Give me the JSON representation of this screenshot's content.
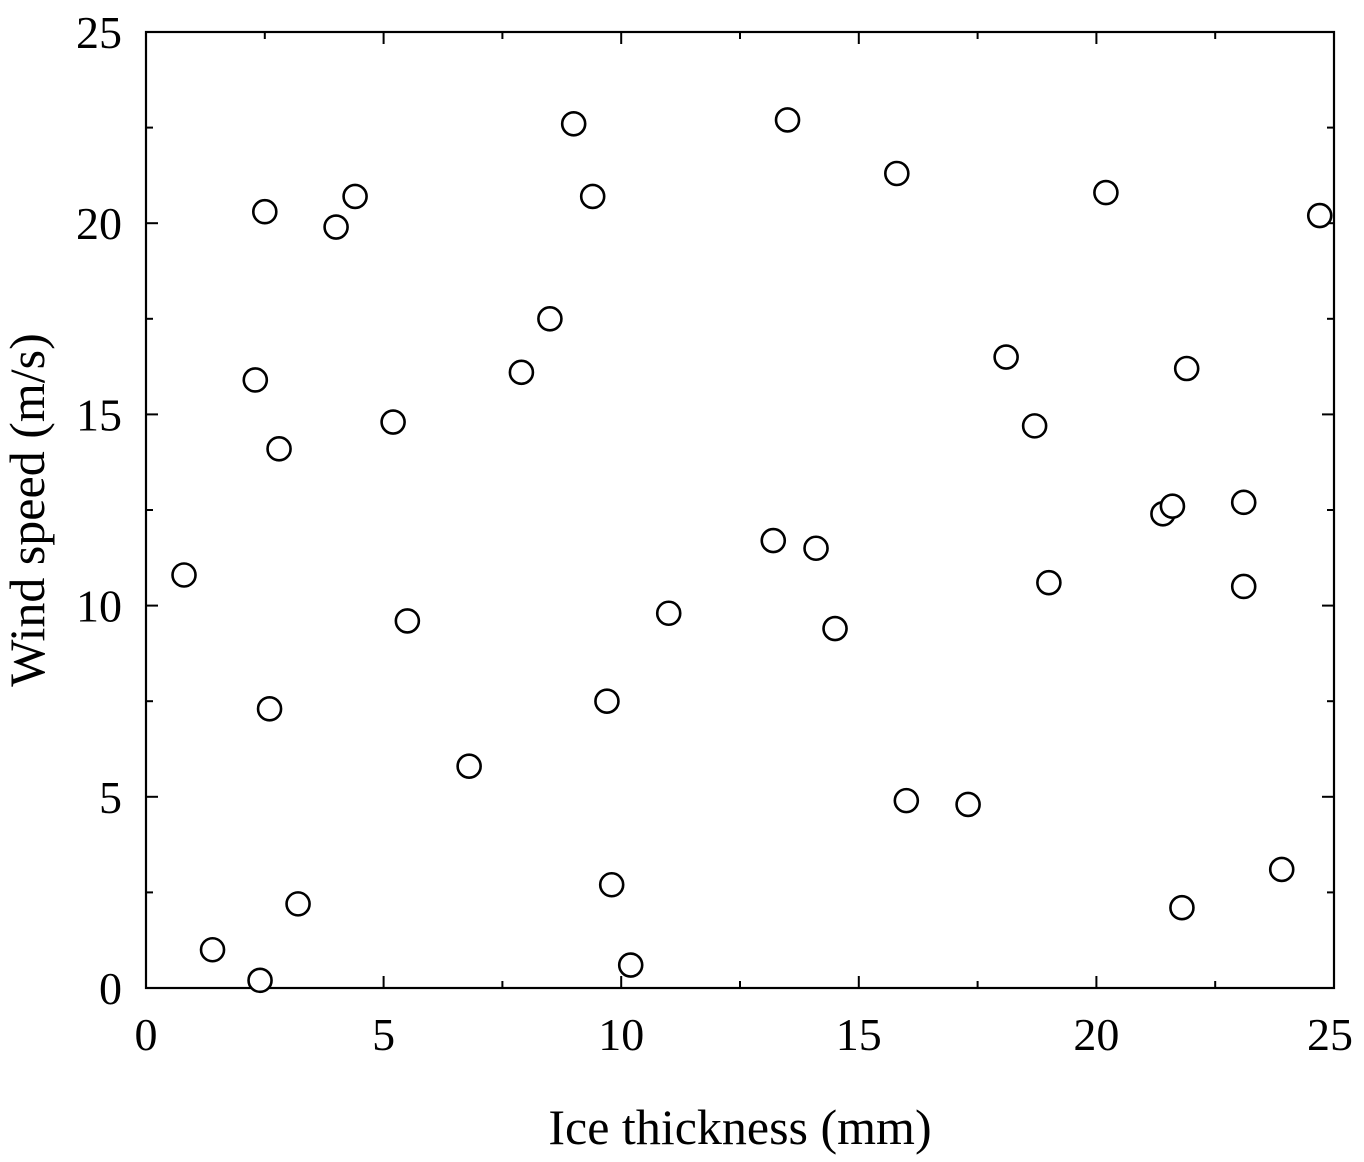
{
  "chart_data": {
    "type": "scatter",
    "title": "",
    "xlabel": "Ice thickness (mm)",
    "ylabel": "Wind speed (m/s)",
    "xlim": [
      0,
      25
    ],
    "ylim": [
      0,
      25
    ],
    "x_ticks": [
      "0",
      "5",
      "10",
      "15",
      "20",
      "25"
    ],
    "y_ticks": [
      "0",
      "5",
      "10",
      "15",
      "20",
      "25"
    ],
    "grid": false,
    "marker": "open-circle",
    "series": [
      {
        "points": [
          {
            "x": 0.8,
            "y": 10.8
          },
          {
            "x": 1.4,
            "y": 1.0
          },
          {
            "x": 2.3,
            "y": 15.9
          },
          {
            "x": 2.4,
            "y": 0.2
          },
          {
            "x": 2.5,
            "y": 20.3
          },
          {
            "x": 2.6,
            "y": 7.3
          },
          {
            "x": 2.8,
            "y": 14.1
          },
          {
            "x": 3.2,
            "y": 2.2
          },
          {
            "x": 4.0,
            "y": 19.9
          },
          {
            "x": 4.4,
            "y": 20.7
          },
          {
            "x": 5.2,
            "y": 14.8
          },
          {
            "x": 5.5,
            "y": 9.6
          },
          {
            "x": 6.8,
            "y": 5.8
          },
          {
            "x": 7.9,
            "y": 16.1
          },
          {
            "x": 8.5,
            "y": 17.5
          },
          {
            "x": 9.0,
            "y": 22.6
          },
          {
            "x": 9.4,
            "y": 20.7
          },
          {
            "x": 9.7,
            "y": 7.5
          },
          {
            "x": 9.8,
            "y": 2.7
          },
          {
            "x": 10.2,
            "y": 0.6
          },
          {
            "x": 11.0,
            "y": 9.8
          },
          {
            "x": 13.2,
            "y": 11.7
          },
          {
            "x": 13.5,
            "y": 22.7
          },
          {
            "x": 14.1,
            "y": 11.5
          },
          {
            "x": 14.5,
            "y": 9.4
          },
          {
            "x": 15.8,
            "y": 21.3
          },
          {
            "x": 16.0,
            "y": 4.9
          },
          {
            "x": 17.3,
            "y": 4.8
          },
          {
            "x": 18.1,
            "y": 16.5
          },
          {
            "x": 18.7,
            "y": 14.7
          },
          {
            "x": 19.0,
            "y": 10.6
          },
          {
            "x": 20.2,
            "y": 20.8
          },
          {
            "x": 21.4,
            "y": 12.4
          },
          {
            "x": 21.6,
            "y": 12.6
          },
          {
            "x": 21.8,
            "y": 2.1
          },
          {
            "x": 21.9,
            "y": 16.2
          },
          {
            "x": 23.1,
            "y": 12.7
          },
          {
            "x": 23.1,
            "y": 10.5
          },
          {
            "x": 23.9,
            "y": 3.1
          },
          {
            "x": 24.7,
            "y": 20.2
          }
        ]
      }
    ]
  }
}
